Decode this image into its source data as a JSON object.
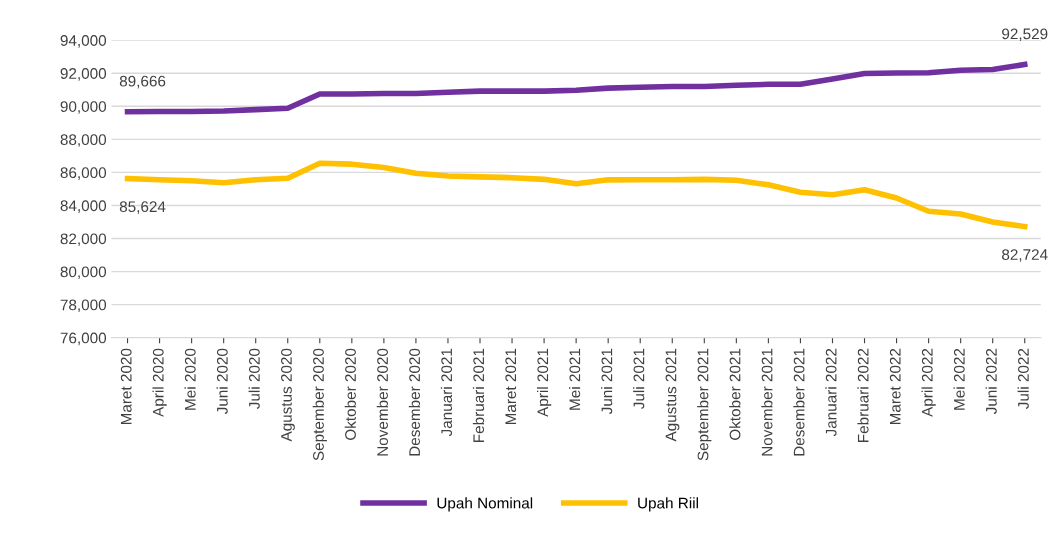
{
  "chart_data": {
    "type": "line",
    "categories": [
      "Maret 2020",
      "April 2020",
      "Mei 2020",
      "Juni 2020",
      "Juli 2020",
      "Agustus 2020",
      "September 2020",
      "Oktober 2020",
      "November 2020",
      "Desember 2020",
      "Januari 2021",
      "Februari 2021",
      "Maret 2021",
      "April 2021",
      "Mei 2021",
      "Juni 2021",
      "Juli 2021",
      "Agustus 2021",
      "September 2021",
      "Oktober 2021",
      "November 2021",
      "Desember 2021",
      "Januari 2022",
      "Februari 2022",
      "Maret 2022",
      "April 2022",
      "Mei 2022",
      "Juni 2022",
      "Juli 2022"
    ],
    "series": [
      {
        "name": "Upah Nominal",
        "color": "#7030a0",
        "values": [
          89666,
          89680,
          89690,
          89720,
          89800,
          89880,
          90750,
          90750,
          90780,
          90780,
          90850,
          90920,
          90920,
          90920,
          90970,
          91100,
          91150,
          91200,
          91200,
          91280,
          91330,
          91330,
          91650,
          91980,
          92020,
          92030,
          92180,
          92230,
          92529
        ],
        "value_labels": [
          "89,666",
          null,
          null,
          null,
          null,
          null,
          null,
          null,
          null,
          null,
          null,
          null,
          null,
          null,
          null,
          null,
          null,
          null,
          null,
          null,
          null,
          null,
          null,
          null,
          null,
          null,
          null,
          null,
          "92,529"
        ]
      },
      {
        "name": "Upah Riil",
        "color": "#ffc000",
        "values": [
          85624,
          85560,
          85500,
          85380,
          85550,
          85650,
          86550,
          86500,
          86300,
          85950,
          85780,
          85730,
          85680,
          85580,
          85320,
          85550,
          85560,
          85560,
          85580,
          85520,
          85250,
          84800,
          84650,
          84950,
          84450,
          83650,
          83480,
          83000,
          82724
        ],
        "value_labels": [
          "85,624",
          null,
          null,
          null,
          null,
          null,
          null,
          null,
          null,
          null,
          null,
          null,
          null,
          null,
          null,
          null,
          null,
          null,
          null,
          null,
          null,
          null,
          null,
          null,
          null,
          null,
          null,
          null,
          "82,724"
        ]
      }
    ],
    "ylim": [
      76000,
      94000
    ],
    "yticks": [
      {
        "value": 76000,
        "label": "76,000"
      },
      {
        "value": 78000,
        "label": "78,000"
      },
      {
        "value": 80000,
        "label": "80,000"
      },
      {
        "value": 82000,
        "label": "82,000"
      },
      {
        "value": 84000,
        "label": "84,000"
      },
      {
        "value": 86000,
        "label": "86,000"
      },
      {
        "value": 88000,
        "label": "88,000"
      },
      {
        "value": 90000,
        "label": "90,000"
      },
      {
        "value": 92000,
        "label": "92,000"
      },
      {
        "value": 94000,
        "label": "94,000"
      }
    ],
    "grid": "y",
    "legend": "bottom",
    "marker": "none",
    "line_style": "solid"
  }
}
